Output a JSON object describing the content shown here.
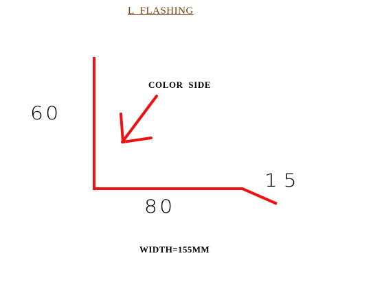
{
  "title": "L  FLASHING",
  "callout": "COLOR  SIDE",
  "dimensions": {
    "vertical_leg": "60",
    "base": "80",
    "lip": "15"
  },
  "footer": "WIDTH=155MM",
  "colors": {
    "profile_stroke": "#ee1111",
    "title_text": "#7a3d10",
    "label_text": "#000000",
    "background": "#ffffff"
  }
}
